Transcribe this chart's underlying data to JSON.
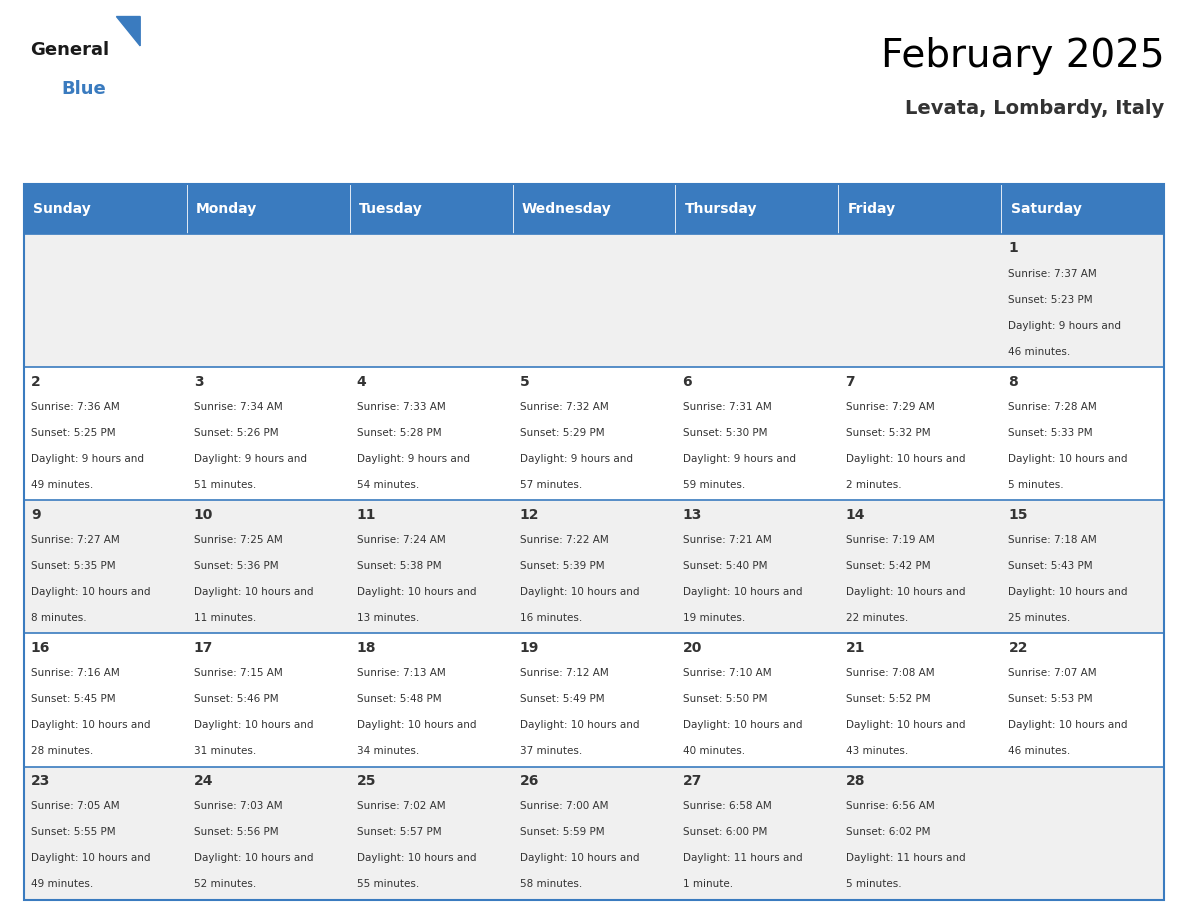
{
  "title": "February 2025",
  "subtitle": "Levata, Lombardy, Italy",
  "header_bg": "#3a7bbf",
  "header_text_color": "#ffffff",
  "day_names": [
    "Sunday",
    "Monday",
    "Tuesday",
    "Wednesday",
    "Thursday",
    "Friday",
    "Saturday"
  ],
  "cell_bg_even": "#f0f0f0",
  "cell_bg_odd": "#ffffff",
  "cell_border_color": "#3a7bbf",
  "date_color": "#333333",
  "info_color": "#333333",
  "calendar": [
    [
      null,
      null,
      null,
      null,
      null,
      null,
      {
        "day": 1,
        "sunrise": "7:37 AM",
        "sunset": "5:23 PM",
        "daylight": "9 hours and 46 minutes."
      }
    ],
    [
      {
        "day": 2,
        "sunrise": "7:36 AM",
        "sunset": "5:25 PM",
        "daylight": "9 hours and 49 minutes."
      },
      {
        "day": 3,
        "sunrise": "7:34 AM",
        "sunset": "5:26 PM",
        "daylight": "9 hours and 51 minutes."
      },
      {
        "day": 4,
        "sunrise": "7:33 AM",
        "sunset": "5:28 PM",
        "daylight": "9 hours and 54 minutes."
      },
      {
        "day": 5,
        "sunrise": "7:32 AM",
        "sunset": "5:29 PM",
        "daylight": "9 hours and 57 minutes."
      },
      {
        "day": 6,
        "sunrise": "7:31 AM",
        "sunset": "5:30 PM",
        "daylight": "9 hours and 59 minutes."
      },
      {
        "day": 7,
        "sunrise": "7:29 AM",
        "sunset": "5:32 PM",
        "daylight": "10 hours and 2 minutes."
      },
      {
        "day": 8,
        "sunrise": "7:28 AM",
        "sunset": "5:33 PM",
        "daylight": "10 hours and 5 minutes."
      }
    ],
    [
      {
        "day": 9,
        "sunrise": "7:27 AM",
        "sunset": "5:35 PM",
        "daylight": "10 hours and 8 minutes."
      },
      {
        "day": 10,
        "sunrise": "7:25 AM",
        "sunset": "5:36 PM",
        "daylight": "10 hours and 11 minutes."
      },
      {
        "day": 11,
        "sunrise": "7:24 AM",
        "sunset": "5:38 PM",
        "daylight": "10 hours and 13 minutes."
      },
      {
        "day": 12,
        "sunrise": "7:22 AM",
        "sunset": "5:39 PM",
        "daylight": "10 hours and 16 minutes."
      },
      {
        "day": 13,
        "sunrise": "7:21 AM",
        "sunset": "5:40 PM",
        "daylight": "10 hours and 19 minutes."
      },
      {
        "day": 14,
        "sunrise": "7:19 AM",
        "sunset": "5:42 PM",
        "daylight": "10 hours and 22 minutes."
      },
      {
        "day": 15,
        "sunrise": "7:18 AM",
        "sunset": "5:43 PM",
        "daylight": "10 hours and 25 minutes."
      }
    ],
    [
      {
        "day": 16,
        "sunrise": "7:16 AM",
        "sunset": "5:45 PM",
        "daylight": "10 hours and 28 minutes."
      },
      {
        "day": 17,
        "sunrise": "7:15 AM",
        "sunset": "5:46 PM",
        "daylight": "10 hours and 31 minutes."
      },
      {
        "day": 18,
        "sunrise": "7:13 AM",
        "sunset": "5:48 PM",
        "daylight": "10 hours and 34 minutes."
      },
      {
        "day": 19,
        "sunrise": "7:12 AM",
        "sunset": "5:49 PM",
        "daylight": "10 hours and 37 minutes."
      },
      {
        "day": 20,
        "sunrise": "7:10 AM",
        "sunset": "5:50 PM",
        "daylight": "10 hours and 40 minutes."
      },
      {
        "day": 21,
        "sunrise": "7:08 AM",
        "sunset": "5:52 PM",
        "daylight": "10 hours and 43 minutes."
      },
      {
        "day": 22,
        "sunrise": "7:07 AM",
        "sunset": "5:53 PM",
        "daylight": "10 hours and 46 minutes."
      }
    ],
    [
      {
        "day": 23,
        "sunrise": "7:05 AM",
        "sunset": "5:55 PM",
        "daylight": "10 hours and 49 minutes."
      },
      {
        "day": 24,
        "sunrise": "7:03 AM",
        "sunset": "5:56 PM",
        "daylight": "10 hours and 52 minutes."
      },
      {
        "day": 25,
        "sunrise": "7:02 AM",
        "sunset": "5:57 PM",
        "daylight": "10 hours and 55 minutes."
      },
      {
        "day": 26,
        "sunrise": "7:00 AM",
        "sunset": "5:59 PM",
        "daylight": "10 hours and 58 minutes."
      },
      {
        "day": 27,
        "sunrise": "6:58 AM",
        "sunset": "6:00 PM",
        "daylight": "11 hours and 1 minute."
      },
      {
        "day": 28,
        "sunrise": "6:56 AM",
        "sunset": "6:02 PM",
        "daylight": "11 hours and 5 minutes."
      },
      null
    ]
  ]
}
